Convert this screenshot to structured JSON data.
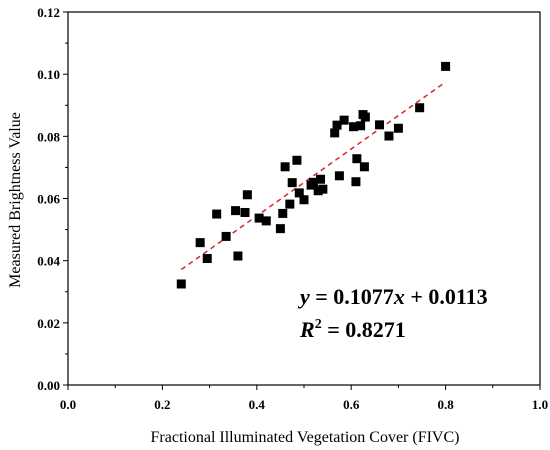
{
  "chart_data": {
    "type": "scatter",
    "title": "",
    "xlabel": "Fractional Illuminated Vegetation Cover (FIVC)",
    "ylabel": "Measured Brightness Value",
    "xlim": [
      0.0,
      1.0
    ],
    "ylim": [
      0.0,
      0.12
    ],
    "x_ticks": [
      "0.0",
      "0.2",
      "0.4",
      "0.6",
      "0.8",
      "1.0"
    ],
    "y_ticks": [
      "0.00",
      "0.02",
      "0.04",
      "0.06",
      "0.08",
      "0.10",
      "0.12"
    ],
    "grid": false,
    "legend": "none",
    "marker_color": "#000000",
    "fit_line_color": "#d62728",
    "series": [
      {
        "points": [
          {
            "x": 0.24,
            "y": 0.0325
          },
          {
            "x": 0.28,
            "y": 0.0458
          },
          {
            "x": 0.295,
            "y": 0.0407
          },
          {
            "x": 0.315,
            "y": 0.055
          },
          {
            "x": 0.335,
            "y": 0.0478
          },
          {
            "x": 0.355,
            "y": 0.0561
          },
          {
            "x": 0.36,
            "y": 0.0415
          },
          {
            "x": 0.375,
            "y": 0.0555
          },
          {
            "x": 0.38,
            "y": 0.0612
          },
          {
            "x": 0.405,
            "y": 0.0537
          },
          {
            "x": 0.42,
            "y": 0.0528
          },
          {
            "x": 0.45,
            "y": 0.0503
          },
          {
            "x": 0.455,
            "y": 0.0552
          },
          {
            "x": 0.46,
            "y": 0.0702
          },
          {
            "x": 0.47,
            "y": 0.0582
          },
          {
            "x": 0.475,
            "y": 0.0651
          },
          {
            "x": 0.485,
            "y": 0.0723
          },
          {
            "x": 0.49,
            "y": 0.0618
          },
          {
            "x": 0.5,
            "y": 0.0596
          },
          {
            "x": 0.515,
            "y": 0.0643
          },
          {
            "x": 0.52,
            "y": 0.0652
          },
          {
            "x": 0.53,
            "y": 0.0625
          },
          {
            "x": 0.535,
            "y": 0.0662
          },
          {
            "x": 0.54,
            "y": 0.063
          },
          {
            "x": 0.565,
            "y": 0.0811
          },
          {
            "x": 0.57,
            "y": 0.0836
          },
          {
            "x": 0.575,
            "y": 0.0673
          },
          {
            "x": 0.585,
            "y": 0.0852
          },
          {
            "x": 0.605,
            "y": 0.0831
          },
          {
            "x": 0.61,
            "y": 0.0654
          },
          {
            "x": 0.612,
            "y": 0.0728
          },
          {
            "x": 0.62,
            "y": 0.0834
          },
          {
            "x": 0.625,
            "y": 0.087
          },
          {
            "x": 0.628,
            "y": 0.0702
          },
          {
            "x": 0.63,
            "y": 0.0862
          },
          {
            "x": 0.66,
            "y": 0.0837
          },
          {
            "x": 0.68,
            "y": 0.0801
          },
          {
            "x": 0.7,
            "y": 0.0826
          },
          {
            "x": 0.745,
            "y": 0.0892
          },
          {
            "x": 0.8,
            "y": 0.1025
          }
        ]
      }
    ],
    "fit_line": {
      "slope": 0.1077,
      "intercept": 0.0113,
      "x_range": [
        0.24,
        0.8
      ]
    },
    "annotations": {
      "equation_y": "y",
      "equation_rest_1": " = 0.1077",
      "equation_x": "x",
      "equation_rest_2": " + 0.0113",
      "r2_r": "R",
      "r2_sup": "2",
      "r2_rest": " = 0.8271"
    }
  }
}
